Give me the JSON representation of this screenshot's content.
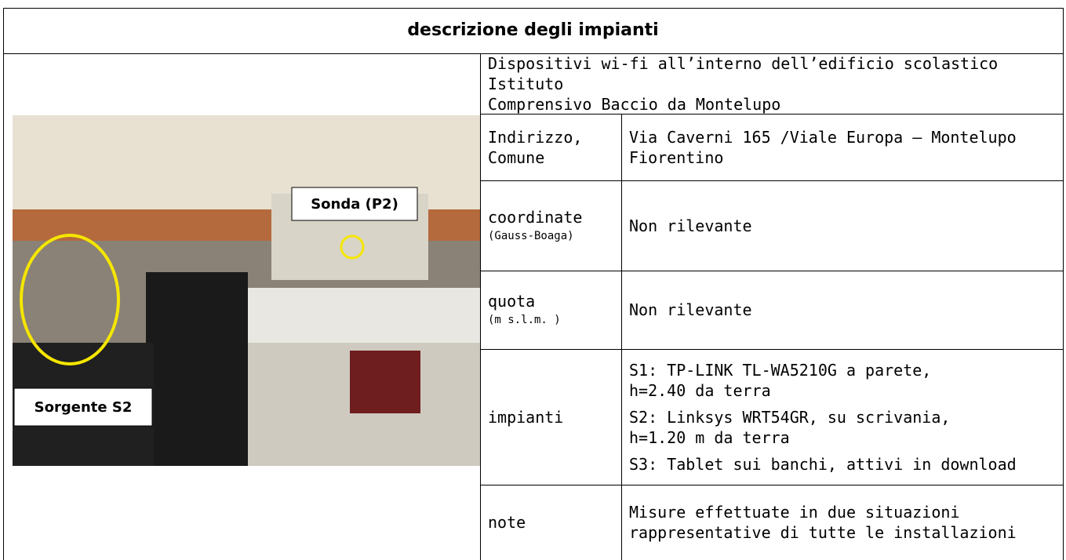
{
  "header": {
    "title": "descrizione degli impianti"
  },
  "table": {
    "intro": [
      "Dispositivi wi-fi all’interno dell’edificio scolastico Istituto",
      "Comprensivo Baccio da Montelupo"
    ],
    "rows": [
      {
        "label": [
          "Indirizzo,",
          "Comune"
        ],
        "value": [
          [
            "Via Caverni 165 /Viale Europa – Montelupo",
            "Fiorentino"
          ]
        ]
      },
      {
        "label": [
          "coordinate"
        ],
        "sublabel": "(Gauss-Boaga)",
        "value": [
          [
            "Non rilevante"
          ]
        ]
      },
      {
        "label": [
          "quota"
        ],
        "sublabel": "(m s.l.m. )",
        "value": [
          [
            "Non rilevante"
          ]
        ]
      },
      {
        "label": [
          "impianti"
        ],
        "value": [
          [
            "S1: TP-LINK TL-WA5210G a parete,",
            "h=2.40 da terra"
          ],
          [
            "S2: Linksys WRT54GR, su scrivania,",
            "h=1.20 m da terra"
          ],
          [
            "S3: Tablet sui banchi, attivi in download"
          ]
        ]
      },
      {
        "label": [
          "note"
        ],
        "value": [
          [
            "Misure effettuate in due situazioni",
            "rappresentative di tutte le installazioni"
          ]
        ]
      }
    ]
  },
  "photo": {
    "probe_label": "Sonda (P2)",
    "source_label": "Sorgente S2"
  }
}
